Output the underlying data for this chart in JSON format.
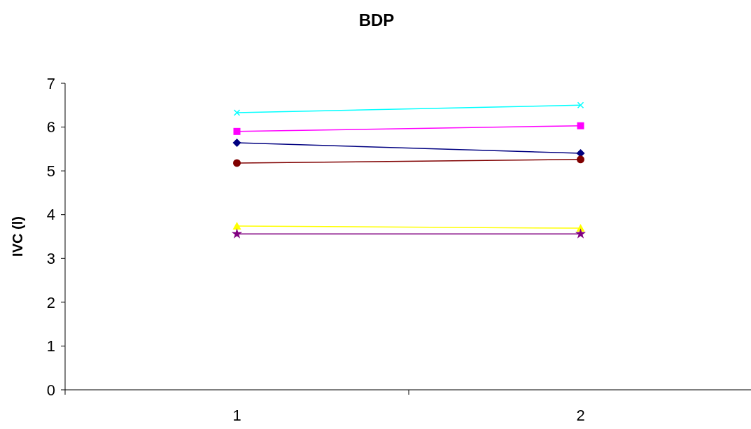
{
  "chart_data": {
    "type": "line",
    "title": "BDP",
    "ylabel": "IVC (l)",
    "categories": [
      "1",
      "2"
    ],
    "ylim": [
      0,
      7
    ],
    "yticks": [
      0,
      1,
      2,
      3,
      4,
      5,
      6,
      7
    ],
    "grid": false,
    "series": [
      {
        "color": "#000080",
        "marker": "diamond",
        "values": [
          5.64,
          5.4
        ]
      },
      {
        "color": "#ff00ff",
        "marker": "square",
        "values": [
          5.9,
          6.03
        ]
      },
      {
        "color": "#ffff00",
        "marker": "triangle",
        "values": [
          3.74,
          3.69
        ]
      },
      {
        "color": "#00ffff",
        "marker": "cross",
        "values": [
          6.33,
          6.5
        ]
      },
      {
        "color": "#800080",
        "marker": "star",
        "values": [
          3.56,
          3.56
        ]
      },
      {
        "color": "#800000",
        "marker": "circle",
        "values": [
          5.18,
          5.26
        ]
      }
    ]
  }
}
